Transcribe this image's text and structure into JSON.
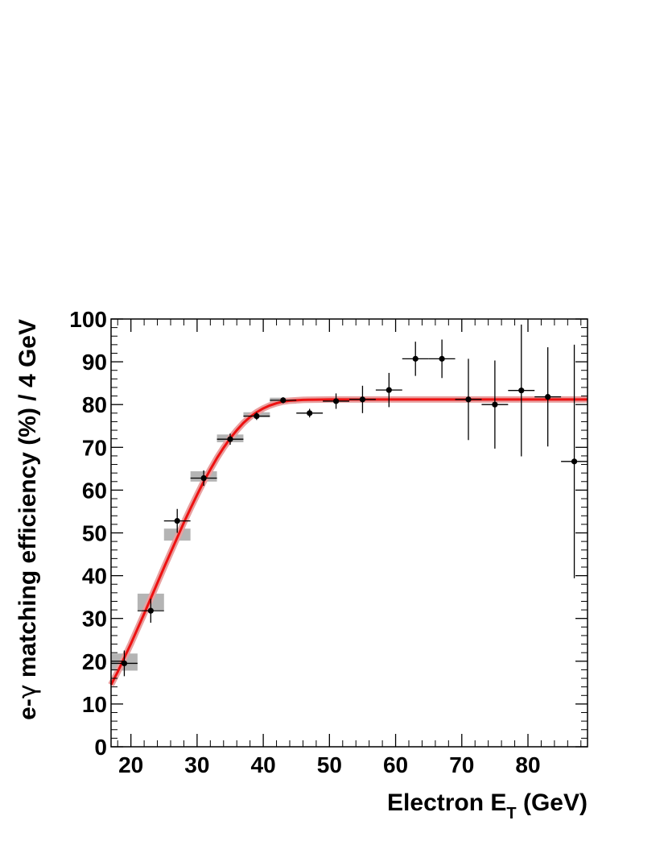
{
  "chart_data": {
    "type": "scatter",
    "title": "",
    "xlabel": {
      "main": "Electron E",
      "sub": "T",
      "unit": " (GeV)"
    },
    "ylabel": {
      "prefix": "e-",
      "symbol": "γ",
      "suffix": " matching efficiency (%) / 4 GeV"
    },
    "xlim": [
      17,
      89
    ],
    "ylim": [
      0,
      100
    ],
    "x_ticks": [
      20,
      30,
      40,
      50,
      60,
      70,
      80
    ],
    "y_ticks": [
      0,
      10,
      20,
      30,
      40,
      50,
      60,
      70,
      80,
      90,
      100
    ],
    "grid": false,
    "series": [
      {
        "x": [
          19,
          23,
          27,
          31,
          35,
          39,
          43,
          47,
          51,
          55,
          59,
          63,
          67,
          71,
          75,
          79,
          83,
          87
        ],
        "xerr": 2,
        "y": [
          19.5,
          31.8,
          52.8,
          62.8,
          71.9,
          77.3,
          81.0,
          78.0,
          80.8,
          81.2,
          83.4,
          90.7,
          90.7,
          81.2,
          80.0,
          83.3,
          81.8,
          66.7
        ],
        "yerr": [
          3.0,
          2.8,
          2.8,
          1.8,
          1.3,
          0.9,
          0.7,
          1.0,
          1.8,
          3.2,
          4.0,
          4.0,
          4.5,
          9.5,
          10.3,
          15.4,
          11.6,
          27.3
        ],
        "color": "#000000"
      }
    ],
    "systematic_boxes": {
      "x": [
        19,
        23,
        27,
        31,
        35,
        39,
        43
      ],
      "halfwidth": 2,
      "y_low": [
        17.8,
        32.0,
        48.2,
        62.0,
        71.2,
        77.0,
        80.2
      ],
      "y_high": [
        21.8,
        35.8,
        51.0,
        64.4,
        73.0,
        78.2,
        81.6
      ],
      "color": "#b4b4b4"
    },
    "fit_curve": {
      "x": [
        17,
        18,
        19,
        20,
        21,
        22,
        23,
        24,
        25,
        26,
        27,
        28,
        29,
        30,
        31,
        32,
        33,
        34,
        35,
        36,
        37,
        38,
        39,
        40,
        41,
        42,
        43,
        44,
        45,
        46,
        48,
        50,
        55,
        60,
        70,
        80,
        89
      ],
      "y": [
        14.5,
        17.5,
        20.8,
        24.1,
        27.6,
        31.1,
        34.7,
        38.3,
        41.9,
        45.4,
        48.9,
        52.4,
        55.7,
        58.9,
        62.0,
        64.8,
        67.5,
        69.9,
        72.1,
        74.0,
        75.7,
        77.1,
        78.2,
        79.1,
        79.8,
        80.3,
        80.7,
        80.9,
        81.0,
        81.1,
        81.15,
        81.2,
        81.2,
        81.2,
        81.2,
        81.2,
        81.2
      ],
      "color": "#ee1111",
      "band_color": "#e8a0a0"
    }
  }
}
